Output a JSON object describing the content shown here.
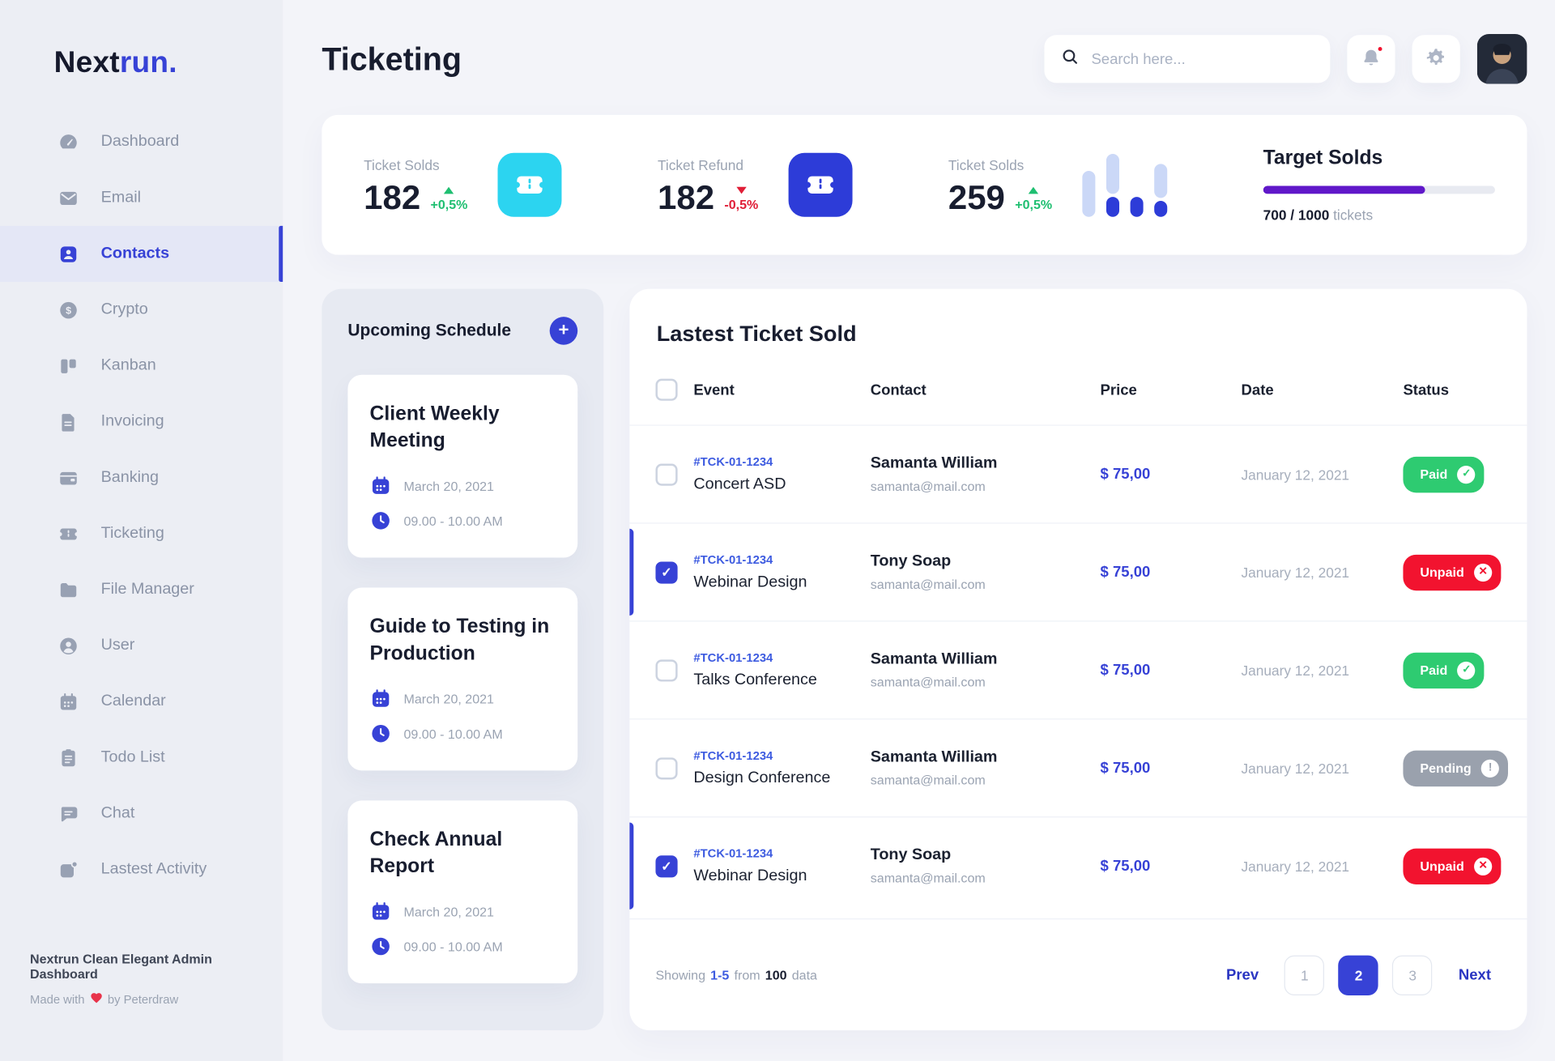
{
  "brand": {
    "part1": "Next",
    "part2": "run."
  },
  "sidebar": {
    "items": [
      {
        "label": "Dashboard",
        "icon": "dashboard",
        "active": false
      },
      {
        "label": "Email",
        "icon": "email",
        "active": false
      },
      {
        "label": "Contacts",
        "icon": "contacts",
        "active": true
      },
      {
        "label": "Crypto",
        "icon": "crypto",
        "active": false
      },
      {
        "label": "Kanban",
        "icon": "kanban",
        "active": false
      },
      {
        "label": "Invoicing",
        "icon": "invoicing",
        "active": false
      },
      {
        "label": "Banking",
        "icon": "banking",
        "active": false
      },
      {
        "label": "Ticketing",
        "icon": "ticketing",
        "active": false
      },
      {
        "label": "File Manager",
        "icon": "file-manager",
        "active": false
      },
      {
        "label": "User",
        "icon": "user",
        "active": false
      },
      {
        "label": "Calendar",
        "icon": "calendar",
        "active": false
      },
      {
        "label": "Todo List",
        "icon": "todo-list",
        "active": false
      },
      {
        "label": "Chat",
        "icon": "chat",
        "active": false
      },
      {
        "label": "Lastest Activity",
        "icon": "activity",
        "active": false
      }
    ],
    "footer": {
      "title": "Nextrun Clean Elegant Admin Dashboard",
      "credit_prefix": "Made with",
      "credit_suffix": "by Peterdraw"
    }
  },
  "header": {
    "title": "Ticketing",
    "search_placeholder": "Search here..."
  },
  "stats": {
    "cards": [
      {
        "label": "Ticket Solds",
        "value": "182",
        "delta": "+0,5%",
        "trend": "up",
        "icon": "ticket",
        "icon_bg": "#2CD4F0"
      },
      {
        "label": "Ticket Refund",
        "value": "182",
        "delta": "-0,5%",
        "trend": "down",
        "icon": "ticket",
        "icon_bg": "#2D3CD8"
      },
      {
        "label": "Ticket Solds",
        "value": "259",
        "delta": "+0,5%",
        "trend": "up"
      }
    ],
    "chart": {
      "type": "bar",
      "bars": [
        {
          "light": 46,
          "dark": 0
        },
        {
          "light": 40,
          "dark": 20
        },
        {
          "light": 0,
          "dark": 20
        },
        {
          "light": 34,
          "dark": 16
        }
      ],
      "light_color": "#CBD8F7",
      "dark_color": "#2D3CD8"
    },
    "target": {
      "title": "Target Solds",
      "progress_percent": 70,
      "current": "700",
      "separator": "/",
      "total": "1000",
      "unit": "tickets",
      "bar_color": "#6018C9"
    }
  },
  "schedule": {
    "title": "Upcoming Schedule",
    "add_label": "+",
    "items": [
      {
        "title": "Client Weekly Meeting",
        "date": "March 20, 2021",
        "time": "09.00 - 10.00 AM"
      },
      {
        "title": "Guide to Testing in Production",
        "date": "March 20, 2021",
        "time": "09.00 - 10.00 AM"
      },
      {
        "title": "Check Annual Report",
        "date": "March 20, 2021",
        "time": "09.00 - 10.00 AM"
      }
    ]
  },
  "table": {
    "title": "Lastest Ticket Sold",
    "columns": [
      "Event",
      "Contact",
      "Price",
      "Date",
      "Status"
    ],
    "rows": [
      {
        "ticket_id": "#TCK-01-1234",
        "event": "Concert ASD",
        "contact": "Samanta William",
        "email": "samanta@mail.com",
        "price": "$ 75,00",
        "date": "January 12, 2021",
        "status": "Paid",
        "status_type": "paid",
        "checked": false
      },
      {
        "ticket_id": "#TCK-01-1234",
        "event": "Webinar Design",
        "contact": "Tony Soap",
        "email": "samanta@mail.com",
        "price": "$ 75,00",
        "date": "January 12, 2021",
        "status": "Unpaid",
        "status_type": "unpaid",
        "checked": true
      },
      {
        "ticket_id": "#TCK-01-1234",
        "event": "Talks Conference",
        "contact": "Samanta William",
        "email": "samanta@mail.com",
        "price": "$ 75,00",
        "date": "January 12, 2021",
        "status": "Paid",
        "status_type": "paid",
        "checked": false
      },
      {
        "ticket_id": "#TCK-01-1234",
        "event": "Design Conference",
        "contact": "Samanta William",
        "email": "samanta@mail.com",
        "price": "$ 75,00",
        "date": "January 12, 2021",
        "status": "Pending",
        "status_type": "pending",
        "checked": false
      },
      {
        "ticket_id": "#TCK-01-1234",
        "event": "Webinar Design",
        "contact": "Tony Soap",
        "email": "samanta@mail.com",
        "price": "$ 75,00",
        "date": "January 12, 2021",
        "status": "Unpaid",
        "status_type": "unpaid",
        "checked": true
      }
    ],
    "footer": {
      "showing_label": "Showing",
      "range": "1-5",
      "from_label": "from",
      "total": "100",
      "data_label": "data"
    },
    "pagination": {
      "prev": "Prev",
      "pages": [
        "1",
        "2",
        "3"
      ],
      "active_page": "2",
      "next": "Next"
    }
  },
  "colors": {
    "primary": "#3742D6",
    "paid": "#2ECB71",
    "unpaid": "#F2132F",
    "pending": "#9AA1AD",
    "cyan": "#2CD4F0",
    "purple": "#6018C9"
  }
}
